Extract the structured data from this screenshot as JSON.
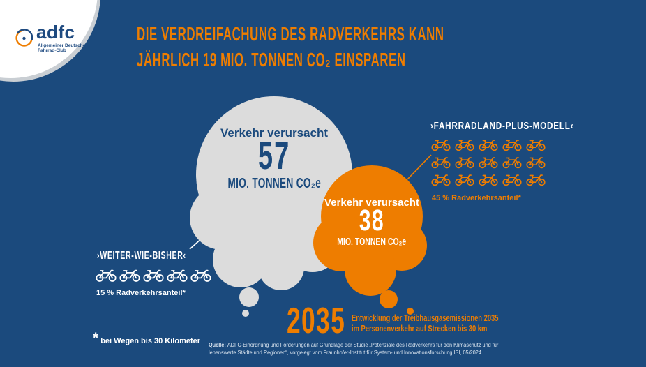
{
  "colors": {
    "background": "#1b4a7d",
    "orange": "#ee7d00",
    "cloud_gray": "#dcdcdc",
    "dark_blue": "#1b4a7d",
    "logo_blue": "#1e4a80",
    "source_text": "#dce6f0"
  },
  "logo": {
    "wordmark": "adfc",
    "subline1": "Allgemeiner Deutscher",
    "subline2": "Fahrrad-Club"
  },
  "headline": {
    "line1": "DIE VERDREIFACHUNG DES RADVERKEHRS KANN",
    "line2": "JÄHRLICH 19 MIO. TONNEN CO₂ EINSPAREN"
  },
  "baseline_bubble": {
    "intro": "Verkehr verursacht",
    "value": "57",
    "unit": "MIO. TONNEN CO₂e"
  },
  "plus_bubble": {
    "intro": "Verkehr verursacht",
    "value": "38",
    "unit": "MIO. TONNEN CO₂e"
  },
  "baseline_scenario": {
    "label": "›WEITER-WIE-BISHER‹",
    "bike_count": 5,
    "share": "15 % Radverkehrsanteil*"
  },
  "plus_scenario": {
    "label": "›FAHRRADLAND-PLUS-MODELL‹",
    "bike_count": 15,
    "share": "45 % Radverkehrsanteil*"
  },
  "year_note": {
    "year": "2035",
    "desc_line1": "Entwicklung der Treibhausgasemissionen 2035",
    "desc_line2": "im Personenverkehr auf Strecken bis 30 km"
  },
  "footnote": {
    "symbol": "*",
    "text": "bei Wegen bis 30 Kilometer"
  },
  "source": {
    "label": "Quelle:",
    "line1": "ADFC-Einordnung und Forderungen auf Grundlage der Studie „Potenziale des Radverkehrs für den Klimaschutz und für",
    "line2": "lebenswerte Städte und Regionen“, vorgelegt vom Fraunhofer-Institut für System- und Innovationsforschung ISI, 05/2024"
  }
}
